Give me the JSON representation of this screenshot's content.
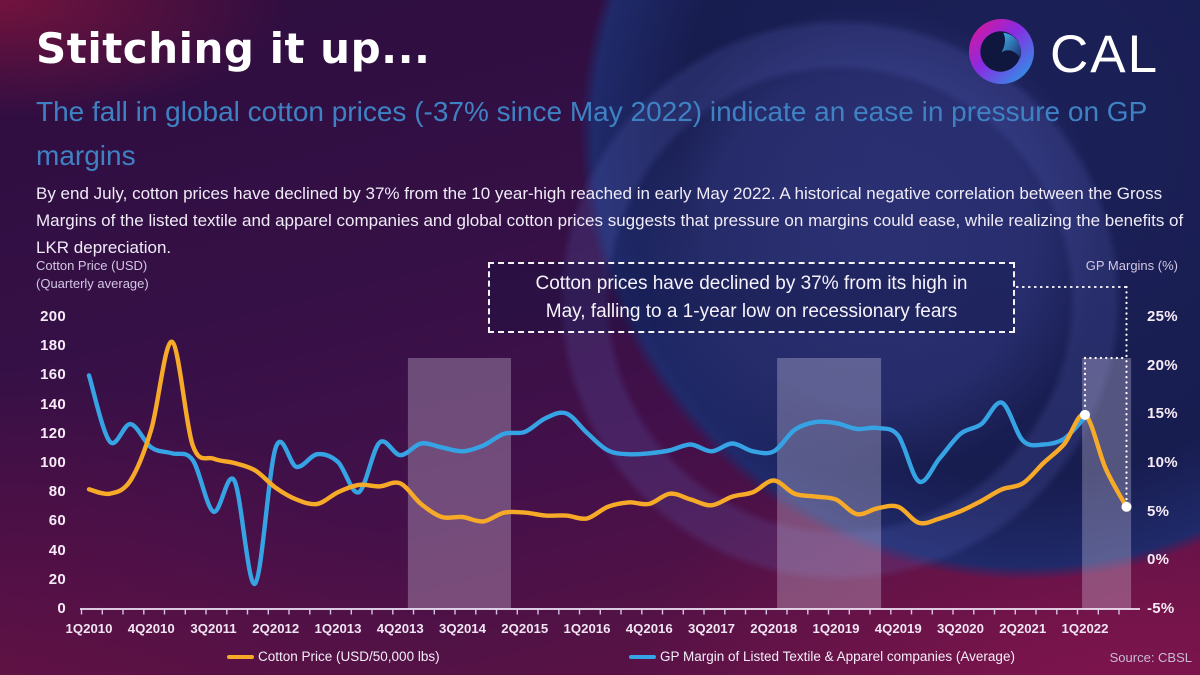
{
  "header": {
    "title": "Stitching it up...",
    "subtitle": "The fall in global cotton prices (-37% since May 2022) indicate an ease in pressure on GP margins",
    "body": "By end July, cotton prices have declined by 37% from the 10 year-high reached in early May 2022. A historical negative correlation between the Gross Margins of the listed textile and apparel companies and global cotton prices suggests that pressure on margins could ease, while realizing the benefits of LKR depreciation.",
    "logo_text": "CAL"
  },
  "colors": {
    "title": "#FFFFFF",
    "subtitle_blue": "#3F82C4",
    "cotton_line": "#F7AA28",
    "gp_line": "#36A3E4",
    "marker_dot": "#FFFFFF",
    "band_fill": "#E2D8EE",
    "logo_gradient": [
      "#E6128F",
      "#8A2BE2",
      "#1BA8E8"
    ]
  },
  "chart_data": {
    "type": "line",
    "title": "",
    "left_axis": {
      "title_line1": "Cotton Price (USD)",
      "title_line2": "(Quarterly average)",
      "ticks": [
        "200",
        "180",
        "160",
        "140",
        "120",
        "100",
        "80",
        "60",
        "40",
        "20",
        "0"
      ],
      "range": [
        0,
        200
      ]
    },
    "right_axis": {
      "title": "GP Margins (%)",
      "ticks": [
        "25%",
        "20%",
        "15%",
        "10%",
        "5%",
        "0%",
        "-5%"
      ],
      "range": [
        -5,
        25
      ]
    },
    "x_axis_labels": [
      "1Q2010",
      "4Q2010",
      "3Q2011",
      "2Q2012",
      "1Q2013",
      "4Q2013",
      "3Q2014",
      "2Q2015",
      "1Q2016",
      "4Q2016",
      "3Q2017",
      "2Q2018",
      "1Q2019",
      "4Q2019",
      "3Q2020",
      "2Q2021",
      "1Q2022"
    ],
    "x_quarters": [
      "1Q2010",
      "2Q2010",
      "3Q2010",
      "4Q2010",
      "1Q2011",
      "2Q2011",
      "3Q2011",
      "4Q2011",
      "1Q2012",
      "2Q2012",
      "3Q2012",
      "4Q2012",
      "1Q2013",
      "2Q2013",
      "3Q2013",
      "4Q2013",
      "1Q2014",
      "2Q2014",
      "3Q2014",
      "4Q2014",
      "1Q2015",
      "2Q2015",
      "3Q2015",
      "4Q2015",
      "1Q2016",
      "2Q2016",
      "3Q2016",
      "4Q2016",
      "1Q2017",
      "2Q2017",
      "3Q2017",
      "4Q2017",
      "1Q2018",
      "2Q2018",
      "3Q2018",
      "4Q2018",
      "1Q2019",
      "2Q2019",
      "3Q2019",
      "4Q2019",
      "1Q2020",
      "2Q2020",
      "3Q2020",
      "4Q2020",
      "1Q2021",
      "2Q2021",
      "3Q2021",
      "4Q2021",
      "1Q2022",
      "2Q2022",
      "3Q2022"
    ],
    "series": [
      {
        "name": "Cotton Price (USD/50,000 lbs)",
        "axis": "left",
        "color": "#F7AA28",
        "values": [
          82,
          79,
          88,
          123,
          183,
          112,
          103,
          100,
          95,
          83,
          75,
          72,
          80,
          85,
          84,
          86,
          72,
          63,
          63,
          60,
          66,
          66,
          64,
          64,
          62,
          70,
          73,
          72,
          79,
          75,
          71,
          77,
          80,
          88,
          79,
          77,
          75,
          65,
          69,
          70,
          59,
          62,
          67,
          74,
          82,
          86,
          100,
          113,
          133,
          96,
          70
        ]
      },
      {
        "name": "GP Margin of Listed Textile & Apparel companies (Average)",
        "axis": "right",
        "color": "#36A3E4",
        "values": [
          19.0,
          12.2,
          14.0,
          11.6,
          11.0,
          10.3,
          5.0,
          8.2,
          -2.4,
          11.6,
          9.6,
          10.9,
          10.1,
          7.0,
          12.1,
          10.8,
          12.0,
          11.6,
          11.2,
          11.8,
          13.0,
          13.2,
          14.6,
          15.1,
          13.1,
          11.3,
          10.9,
          11.0,
          11.3,
          11.9,
          11.2,
          12.0,
          11.2,
          11.2,
          13.4,
          14.2,
          14.1,
          13.5,
          13.6,
          12.8,
          8.1,
          10.5,
          13.0,
          14.0,
          16.2,
          12.3,
          11.9,
          12.5,
          14.7
        ]
      }
    ],
    "highlight_bands_quarter_ranges": [
      [
        15.37,
        20.34
      ],
      [
        33.16,
        38.17
      ],
      [
        47.86,
        50.22
      ]
    ],
    "annotation": {
      "text": "Cotton prices have declined by 37% from its high in May, falling to a 1-year low on recessionary fears"
    },
    "markers": [
      {
        "series": "Cotton Price (USD/50,000 lbs)",
        "quarter_index": 48,
        "value": 133
      },
      {
        "series": "Cotton Price (USD/50,000 lbs)",
        "quarter_index": 50,
        "value": 70
      }
    ],
    "grid": "off",
    "legend_position": "bottom"
  },
  "legend": {
    "cotton_label": "Cotton Price (USD/50,000 lbs)",
    "gp_label": "GP Margin of Listed Textile & Apparel companies (Average)"
  },
  "source": "Source: CBSL"
}
